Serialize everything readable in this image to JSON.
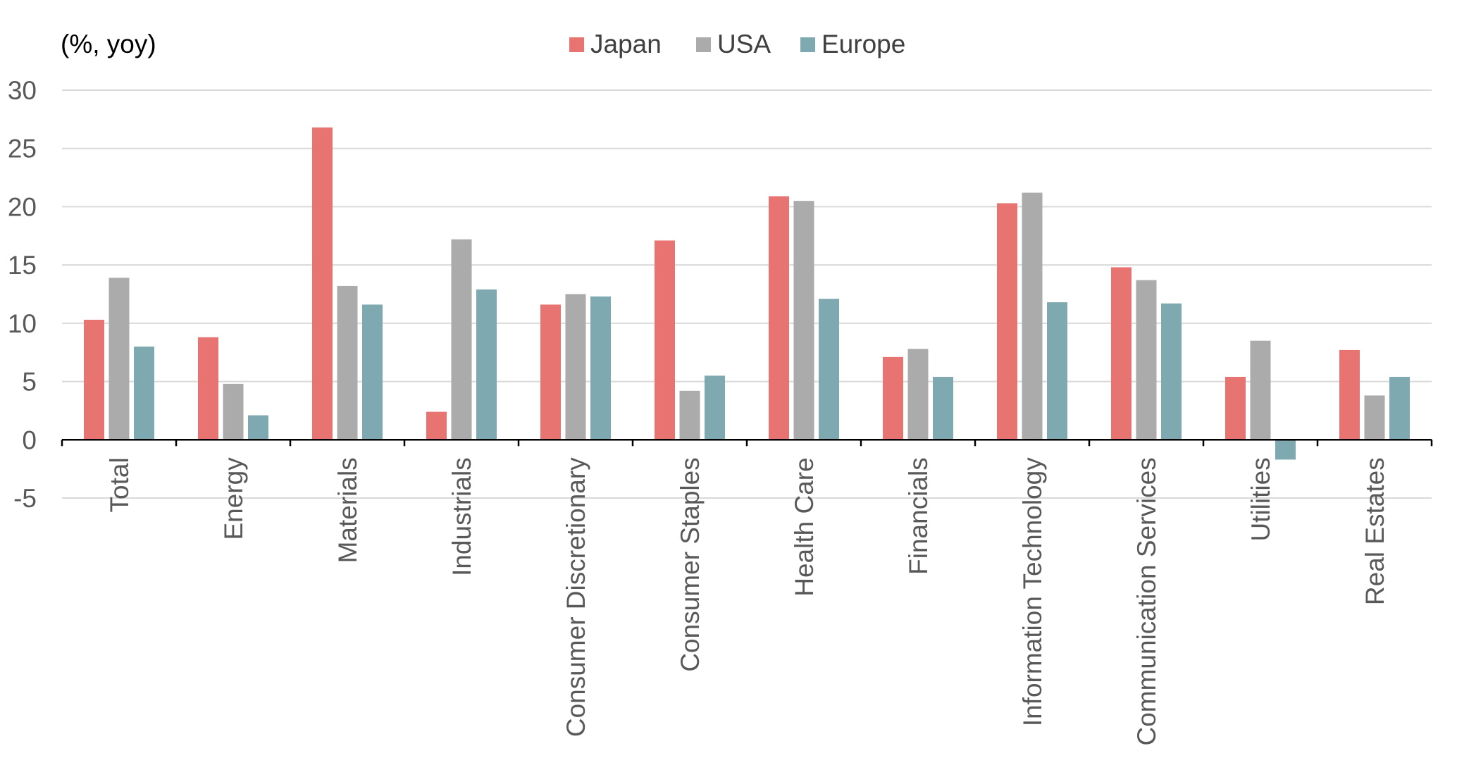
{
  "chart_data": {
    "type": "bar",
    "unit_label": "(%, yoy)",
    "categories": [
      "Total",
      "Energy",
      "Materials",
      "Industrials",
      "Consumer Discretionary",
      "Consumer Staples",
      "Health Care",
      "Financials",
      "Information Technology",
      "Communication Services",
      "Utilities",
      "Real Estates"
    ],
    "series": [
      {
        "name": "Japan",
        "color": "#E87472",
        "values": [
          10.3,
          8.8,
          26.8,
          2.4,
          11.6,
          17.1,
          20.9,
          7.1,
          20.3,
          14.8,
          5.4,
          7.7
        ]
      },
      {
        "name": "USA",
        "color": "#ABABAB",
        "values": [
          13.9,
          4.8,
          13.2,
          17.2,
          12.5,
          4.2,
          20.5,
          7.8,
          21.2,
          13.7,
          8.5,
          3.8
        ]
      },
      {
        "name": "Europe",
        "color": "#7FA9B0",
        "values": [
          8.0,
          2.1,
          11.6,
          12.9,
          12.3,
          5.5,
          12.1,
          5.4,
          11.8,
          11.7,
          -1.7,
          5.4
        ]
      }
    ],
    "ylim": [
      -5,
      30
    ],
    "yticks": [
      -5,
      0,
      5,
      10,
      15,
      20,
      25,
      30
    ],
    "ytick_labels": [
      "-5",
      "0",
      "5",
      "10",
      "15",
      "20",
      "25",
      "30"
    ],
    "grid": true,
    "legend_position": "top-center"
  }
}
